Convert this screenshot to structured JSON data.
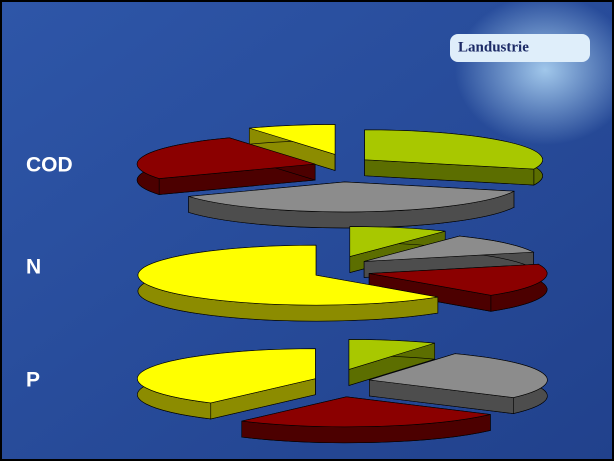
{
  "logo": "Landustrie",
  "chart_data": [
    {
      "type": "pie",
      "title": "COD",
      "values": [
        30,
        37,
        25,
        8
      ],
      "colors": [
        "#a8c800",
        "#8c8c8c",
        "#8b0000",
        "#ffff00"
      ]
    },
    {
      "type": "pie",
      "title": "N",
      "values": [
        9,
        11,
        18,
        62
      ],
      "colors": [
        "#a8c800",
        "#8c8c8c",
        "#8b0000",
        "#ffff00"
      ]
    },
    {
      "type": "pie",
      "title": "P",
      "values": [
        8,
        27,
        25,
        40
      ],
      "colors": [
        "#a8c800",
        "#8c8c8c",
        "#8b0000",
        "#ffff00"
      ]
    }
  ]
}
